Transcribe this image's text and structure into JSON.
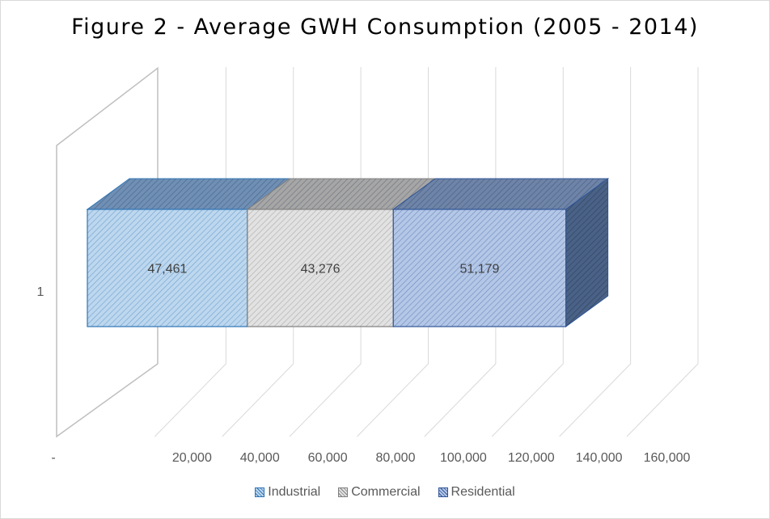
{
  "chart_data": {
    "type": "bar",
    "orientation": "horizontal",
    "stacked": true,
    "three_d": true,
    "title": "Figure 2 - Average GWH Consumption (2005 - 2014)",
    "categories": [
      "1"
    ],
    "series": [
      {
        "name": "Industrial",
        "values": [
          47461
        ],
        "value_labels": [
          "47,461"
        ],
        "face_color": "#bdd7ee",
        "side_color": "#5b7fa8",
        "top_color": "#6f8fb5",
        "hatch_color": "#2e75b6"
      },
      {
        "name": "Commercial",
        "values": [
          43276
        ],
        "value_labels": [
          "43,276"
        ],
        "face_color": "#e2e2e2",
        "side_color": "#8c8c8c",
        "top_color": "#a6a6a6",
        "hatch_color": "#7f7f7f"
      },
      {
        "name": "Residential",
        "values": [
          51179
        ],
        "value_labels": [
          "51,179"
        ],
        "face_color": "#b4c7e7",
        "side_color": "#4a6287",
        "top_color": "#6e84a8",
        "hatch_color": "#2f5597"
      }
    ],
    "xlim": [
      0,
      160000
    ],
    "x_ticks": [
      0,
      20000,
      40000,
      60000,
      80000,
      100000,
      120000,
      140000,
      160000
    ],
    "x_tick_labels": [
      "-",
      "20,000",
      "40,000",
      "60,000",
      "80,000",
      "100,000",
      "120,000",
      "140,000",
      "160,000"
    ],
    "grid": true,
    "legend_position": "bottom"
  }
}
